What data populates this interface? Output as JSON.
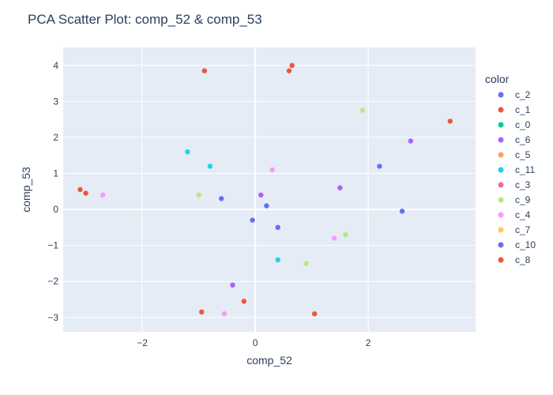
{
  "chart_data": {
    "type": "scatter",
    "title": "PCA Scatter Plot: comp_52 & comp_53",
    "xlabel": "comp_52",
    "ylabel": "comp_53",
    "xlim": [
      -3.4,
      3.9
    ],
    "ylim": [
      -3.4,
      4.5
    ],
    "xticks": [
      -2,
      0,
      2
    ],
    "yticks": [
      -3,
      -2,
      -1,
      0,
      1,
      2,
      3,
      4
    ],
    "grid": true,
    "legend": {
      "title": "color",
      "position": "right"
    },
    "colors": {
      "plot_bg": "#e5ecf6",
      "grid": "#ffffff",
      "text": "#2a3f5f"
    },
    "series": [
      {
        "name": "c_2",
        "color": "#636efa",
        "points": [
          [
            -0.05,
            -0.3
          ],
          [
            0.2,
            0.1
          ],
          [
            2.2,
            1.2
          ],
          [
            0.4,
            -0.5
          ]
        ]
      },
      {
        "name": "c_1",
        "color": "#ef553b",
        "points": []
      },
      {
        "name": "c_0",
        "color": "#00cc96",
        "points": []
      },
      {
        "name": "c_6",
        "color": "#ab63fa",
        "points": [
          [
            -0.4,
            -2.1
          ],
          [
            2.75,
            1.9
          ],
          [
            1.5,
            0.6
          ],
          [
            0.1,
            0.4
          ]
        ]
      },
      {
        "name": "c_5",
        "color": "#ffa15a",
        "points": []
      },
      {
        "name": "c_11",
        "color": "#19d3f3",
        "points": [
          [
            -1.2,
            1.6
          ],
          [
            -0.8,
            1.2
          ],
          [
            0.4,
            -1.4
          ]
        ]
      },
      {
        "name": "c_3",
        "color": "#ff6692",
        "points": []
      },
      {
        "name": "c_9",
        "color": "#b6e880",
        "points": [
          [
            1.9,
            2.75
          ],
          [
            -1.0,
            0.4
          ],
          [
            0.9,
            -1.5
          ],
          [
            1.6,
            -0.7
          ]
        ]
      },
      {
        "name": "c_4",
        "color": "#ff97ff",
        "points": [
          [
            -0.55,
            -2.9
          ],
          [
            -2.7,
            0.4
          ],
          [
            1.4,
            -0.8
          ],
          [
            0.3,
            1.1
          ]
        ]
      },
      {
        "name": "c_7",
        "color": "#fecb52",
        "points": []
      },
      {
        "name": "c_10",
        "color": "#636efa",
        "points": [
          [
            2.6,
            -0.05
          ],
          [
            -0.6,
            0.3
          ]
        ]
      },
      {
        "name": "c_8",
        "color": "#ef553b",
        "points": [
          [
            -3.1,
            0.55
          ],
          [
            -3.0,
            0.45
          ],
          [
            3.45,
            2.45
          ],
          [
            -0.9,
            3.85
          ],
          [
            0.65,
            4.0
          ],
          [
            0.6,
            3.85
          ],
          [
            -0.2,
            -2.55
          ],
          [
            -0.95,
            -2.85
          ],
          [
            1.05,
            -2.9
          ]
        ]
      }
    ]
  }
}
